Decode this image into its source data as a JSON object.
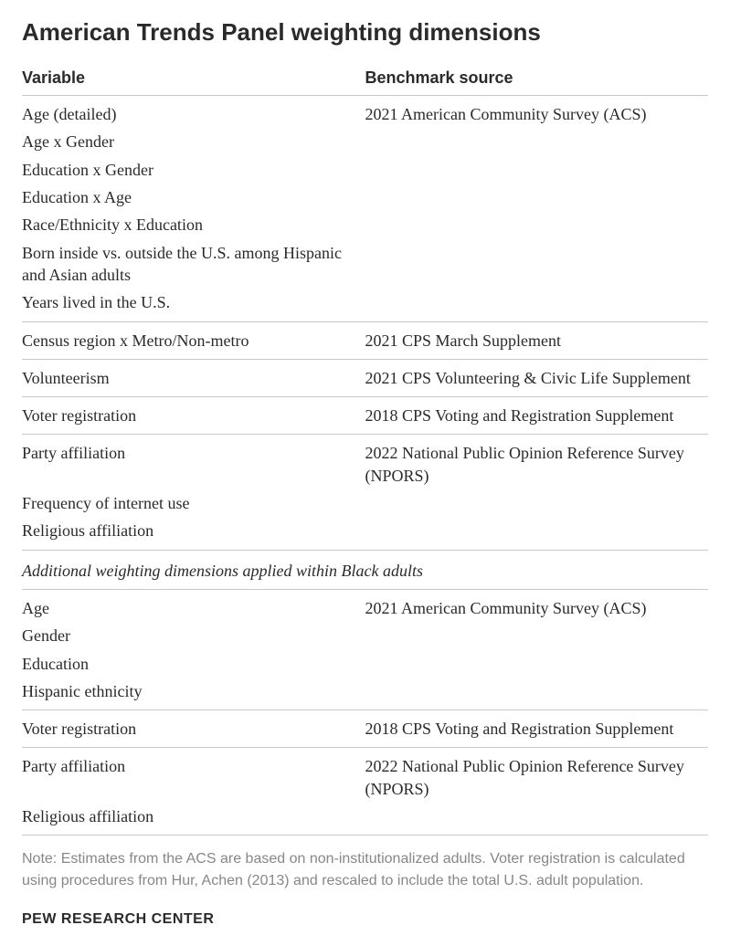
{
  "title": "American Trends Panel weighting dimensions",
  "columns": {
    "variable": "Variable",
    "source": "Benchmark source"
  },
  "groups": [
    {
      "source": "2021 American Community Survey (ACS)",
      "vars": [
        "Age (detailed)",
        "Age x Gender",
        "Education x Gender",
        "Education x Age",
        "Race/Ethnicity x Education",
        "Born inside vs. outside the U.S. among Hispanic and Asian adults",
        "Years lived in the U.S."
      ]
    },
    {
      "source": "2021 CPS March Supplement",
      "vars": [
        "Census region x Metro/Non-metro"
      ]
    },
    {
      "source": "2021 CPS Volunteering & Civic Life Supplement",
      "vars": [
        "Volunteerism"
      ]
    },
    {
      "source": "2018 CPS Voting and Registration Supplement",
      "vars": [
        "Voter registration"
      ]
    },
    {
      "source": "2022 National Public Opinion Reference Survey (NPORS)",
      "vars": [
        "Party affiliation",
        "Frequency of internet use",
        "Religious affiliation"
      ]
    }
  ],
  "section2_header": "Additional weighting dimensions applied within Black adults",
  "groups2": [
    {
      "source": "2021 American Community Survey (ACS)",
      "vars": [
        "Age",
        "Gender",
        "Education",
        "Hispanic ethnicity"
      ]
    },
    {
      "source": "2018 CPS Voting and Registration Supplement",
      "vars": [
        "Voter registration"
      ]
    },
    {
      "source": "2022 National Public Opinion Reference Survey (NPORS)",
      "vars": [
        "Party affiliation",
        "Religious affiliation"
      ]
    }
  ],
  "note": "Note: Estimates from the ACS are based on non-institutionalized adults. Voter registration is calculated using procedures from Hur, Achen (2013) and rescaled to include the total U.S. adult population.",
  "attribution": "PEW RESEARCH CENTER",
  "colors": {
    "text": "#2a2a2a",
    "note": "#878787",
    "rule": "#c8c8c8",
    "background": "#ffffff"
  },
  "typography": {
    "title_fontsize": 26,
    "header_fontsize": 18,
    "body_fontsize": 18,
    "note_fontsize": 16,
    "attribution_fontsize": 16,
    "title_font": "Arial bold",
    "body_font": "Georgia"
  }
}
